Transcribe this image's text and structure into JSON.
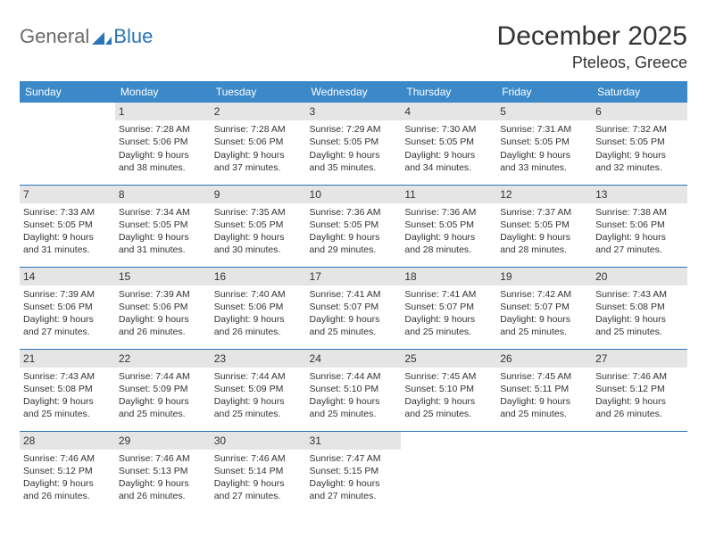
{
  "header": {
    "logo": {
      "general": "General",
      "blue": "Blue"
    },
    "month_title": "December 2025",
    "location": "Pteleos, Greece"
  },
  "style": {
    "header_bg": "#3b89c9",
    "header_fg": "#ffffff",
    "daynum_bg": "#e5e5e5",
    "week_border": "#2a74b8",
    "text_color": "#333333",
    "logo_gray": "#6a6a6a",
    "logo_blue": "#2a74b8"
  },
  "weekdays": [
    "Sunday",
    "Monday",
    "Tuesday",
    "Wednesday",
    "Thursday",
    "Friday",
    "Saturday"
  ],
  "labels": {
    "sunrise": "Sunrise:",
    "sunset": "Sunset:",
    "daylight": "Daylight:"
  },
  "weeks": [
    [
      {
        "blank": true
      },
      {
        "day": "1",
        "sunrise": "7:28 AM",
        "sunset": "5:06 PM",
        "daylight": "9 hours and 38 minutes."
      },
      {
        "day": "2",
        "sunrise": "7:28 AM",
        "sunset": "5:06 PM",
        "daylight": "9 hours and 37 minutes."
      },
      {
        "day": "3",
        "sunrise": "7:29 AM",
        "sunset": "5:05 PM",
        "daylight": "9 hours and 35 minutes."
      },
      {
        "day": "4",
        "sunrise": "7:30 AM",
        "sunset": "5:05 PM",
        "daylight": "9 hours and 34 minutes."
      },
      {
        "day": "5",
        "sunrise": "7:31 AM",
        "sunset": "5:05 PM",
        "daylight": "9 hours and 33 minutes."
      },
      {
        "day": "6",
        "sunrise": "7:32 AM",
        "sunset": "5:05 PM",
        "daylight": "9 hours and 32 minutes."
      }
    ],
    [
      {
        "day": "7",
        "sunrise": "7:33 AM",
        "sunset": "5:05 PM",
        "daylight": "9 hours and 31 minutes."
      },
      {
        "day": "8",
        "sunrise": "7:34 AM",
        "sunset": "5:05 PM",
        "daylight": "9 hours and 31 minutes."
      },
      {
        "day": "9",
        "sunrise": "7:35 AM",
        "sunset": "5:05 PM",
        "daylight": "9 hours and 30 minutes."
      },
      {
        "day": "10",
        "sunrise": "7:36 AM",
        "sunset": "5:05 PM",
        "daylight": "9 hours and 29 minutes."
      },
      {
        "day": "11",
        "sunrise": "7:36 AM",
        "sunset": "5:05 PM",
        "daylight": "9 hours and 28 minutes."
      },
      {
        "day": "12",
        "sunrise": "7:37 AM",
        "sunset": "5:05 PM",
        "daylight": "9 hours and 28 minutes."
      },
      {
        "day": "13",
        "sunrise": "7:38 AM",
        "sunset": "5:06 PM",
        "daylight": "9 hours and 27 minutes."
      }
    ],
    [
      {
        "day": "14",
        "sunrise": "7:39 AM",
        "sunset": "5:06 PM",
        "daylight": "9 hours and 27 minutes."
      },
      {
        "day": "15",
        "sunrise": "7:39 AM",
        "sunset": "5:06 PM",
        "daylight": "9 hours and 26 minutes."
      },
      {
        "day": "16",
        "sunrise": "7:40 AM",
        "sunset": "5:06 PM",
        "daylight": "9 hours and 26 minutes."
      },
      {
        "day": "17",
        "sunrise": "7:41 AM",
        "sunset": "5:07 PM",
        "daylight": "9 hours and 25 minutes."
      },
      {
        "day": "18",
        "sunrise": "7:41 AM",
        "sunset": "5:07 PM",
        "daylight": "9 hours and 25 minutes."
      },
      {
        "day": "19",
        "sunrise": "7:42 AM",
        "sunset": "5:07 PM",
        "daylight": "9 hours and 25 minutes."
      },
      {
        "day": "20",
        "sunrise": "7:43 AM",
        "sunset": "5:08 PM",
        "daylight": "9 hours and 25 minutes."
      }
    ],
    [
      {
        "day": "21",
        "sunrise": "7:43 AM",
        "sunset": "5:08 PM",
        "daylight": "9 hours and 25 minutes."
      },
      {
        "day": "22",
        "sunrise": "7:44 AM",
        "sunset": "5:09 PM",
        "daylight": "9 hours and 25 minutes."
      },
      {
        "day": "23",
        "sunrise": "7:44 AM",
        "sunset": "5:09 PM",
        "daylight": "9 hours and 25 minutes."
      },
      {
        "day": "24",
        "sunrise": "7:44 AM",
        "sunset": "5:10 PM",
        "daylight": "9 hours and 25 minutes."
      },
      {
        "day": "25",
        "sunrise": "7:45 AM",
        "sunset": "5:10 PM",
        "daylight": "9 hours and 25 minutes."
      },
      {
        "day": "26",
        "sunrise": "7:45 AM",
        "sunset": "5:11 PM",
        "daylight": "9 hours and 25 minutes."
      },
      {
        "day": "27",
        "sunrise": "7:46 AM",
        "sunset": "5:12 PM",
        "daylight": "9 hours and 26 minutes."
      }
    ],
    [
      {
        "day": "28",
        "sunrise": "7:46 AM",
        "sunset": "5:12 PM",
        "daylight": "9 hours and 26 minutes."
      },
      {
        "day": "29",
        "sunrise": "7:46 AM",
        "sunset": "5:13 PM",
        "daylight": "9 hours and 26 minutes."
      },
      {
        "day": "30",
        "sunrise": "7:46 AM",
        "sunset": "5:14 PM",
        "daylight": "9 hours and 27 minutes."
      },
      {
        "day": "31",
        "sunrise": "7:47 AM",
        "sunset": "5:15 PM",
        "daylight": "9 hours and 27 minutes."
      },
      {
        "blank": true
      },
      {
        "blank": true
      },
      {
        "blank": true
      }
    ]
  ]
}
